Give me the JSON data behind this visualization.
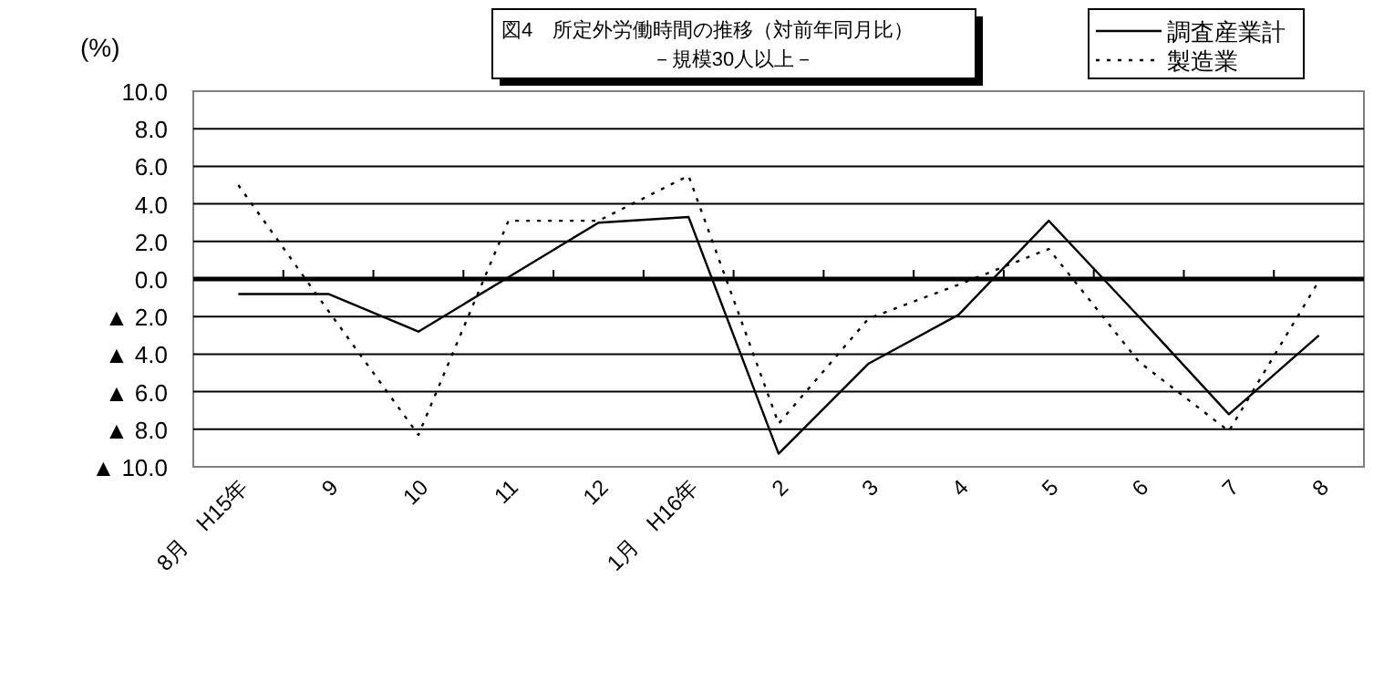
{
  "chart_data": {
    "type": "line",
    "title": "図4　所定外労働時間の推移（対前年同月比）",
    "subtitle": "－規模30人以上－",
    "ylabel": "(%)",
    "categories": [
      "8月　H15年",
      "9",
      "10",
      "11",
      "12",
      "1月　H16年",
      "2",
      "3",
      "4",
      "5",
      "6",
      "7",
      "8"
    ],
    "series": [
      {
        "name": "調査産業計",
        "color": "#000000",
        "line_style": "solid",
        "values": [
          -0.8,
          -0.8,
          -2.8,
          0.1,
          3.0,
          3.3,
          -9.3,
          -4.5,
          -1.9,
          3.1,
          -2.0,
          -7.2,
          -3.0
        ]
      },
      {
        "name": "製造業",
        "color": "#000000",
        "line_style": "dotted",
        "values": [
          5.0,
          -1.7,
          -8.3,
          3.1,
          3.1,
          5.5,
          -7.7,
          -2.1,
          -0.3,
          1.6,
          -4.4,
          -8.1,
          -0.1
        ]
      }
    ],
    "ylim": [
      -10,
      10
    ],
    "yticks": [
      {
        "value": -10,
        "label": "▲ 10.0"
      },
      {
        "value": -8,
        "label": "▲ 8.0"
      },
      {
        "value": -6,
        "label": "▲ 6.0"
      },
      {
        "value": -4,
        "label": "▲ 4.0"
      },
      {
        "value": -2,
        "label": "▲ 2.0"
      },
      {
        "value": 0,
        "label": "0.0"
      },
      {
        "value": 2,
        "label": "2.0"
      },
      {
        "value": 4,
        "label": "4.0"
      },
      {
        "value": 6,
        "label": "6.0"
      },
      {
        "value": 8,
        "label": "8.0"
      },
      {
        "value": 10,
        "label": "10.0"
      }
    ],
    "grid": "y",
    "legend": "top right",
    "marker": "none"
  }
}
